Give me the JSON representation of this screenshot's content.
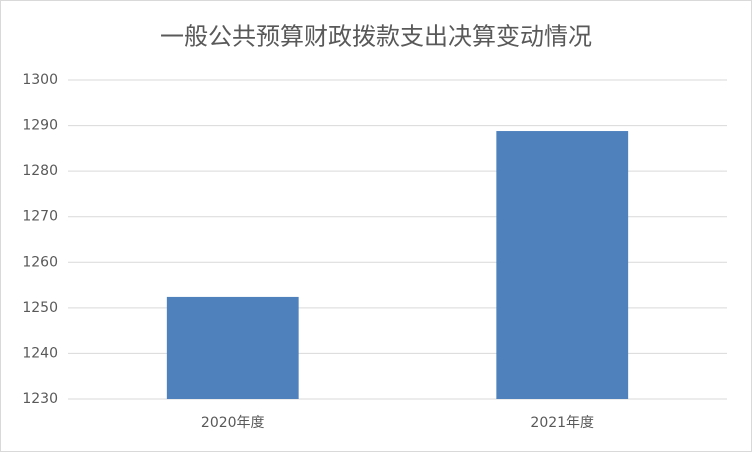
{
  "chart_data": {
    "type": "bar",
    "title": "一般公共预算财政拨款支出决算变动情况",
    "categories": [
      "2020年度",
      "2021年度"
    ],
    "values": [
      1252.4,
      1288.8
    ],
    "color": "#4f81bd",
    "ylim": [
      1230,
      1300
    ],
    "yticks": [
      1230,
      1240,
      1250,
      1260,
      1270,
      1280,
      1290,
      1300
    ],
    "grid": true
  }
}
